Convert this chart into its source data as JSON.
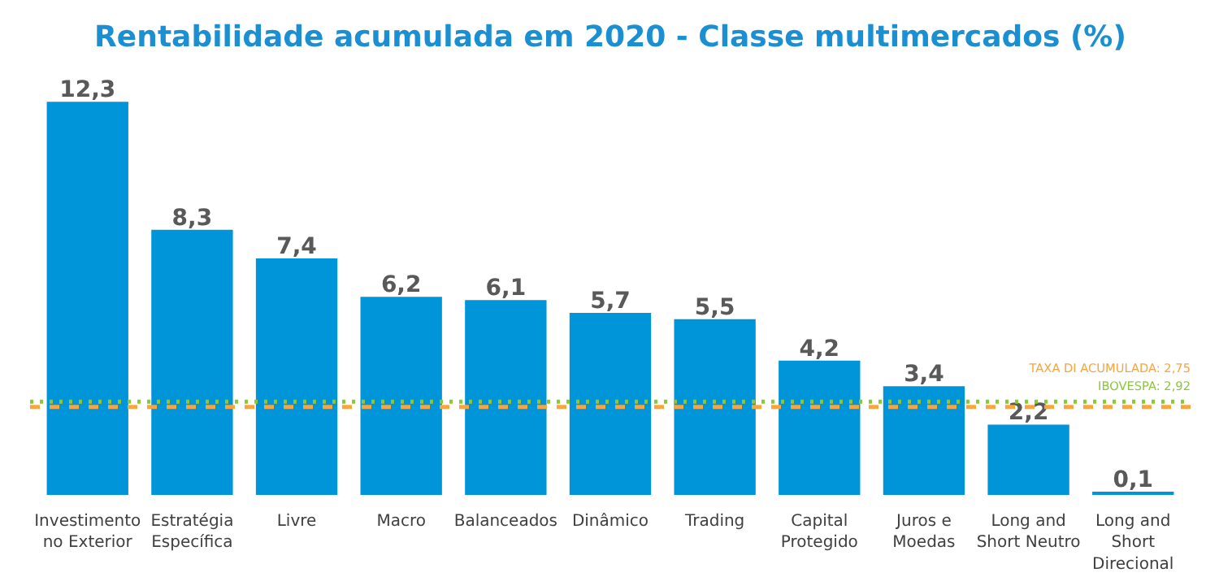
{
  "chart_data": {
    "type": "bar",
    "title": "Rentabilidade acumulada em 2020 - Classe multimercados (%)",
    "categories": [
      "Investimento\nno Exterior",
      "Estratégia\nEspecífica",
      "Livre",
      "Macro",
      "Balanceados",
      "Dinâmico",
      "Trading",
      "Capital\nProtegido",
      "Juros e\nMoedas",
      "Long and\nShort Neutro",
      "Long and\nShort\nDirecional"
    ],
    "values": [
      12.3,
      8.3,
      7.4,
      6.2,
      6.1,
      5.7,
      5.5,
      4.2,
      3.4,
      2.2,
      0.1
    ],
    "value_labels": [
      "12,3",
      "8,3",
      "7,4",
      "6,2",
      "6,1",
      "5,7",
      "5,5",
      "4,2",
      "3,4",
      "2,2",
      "0,1"
    ],
    "color": "#0095d9",
    "ref_lines": [
      {
        "axis": "y",
        "value": 2.92,
        "label": "IBOVESPA: 2,92",
        "color": "#8cc63f",
        "line_style": "dotted"
      },
      {
        "axis": "y",
        "value": 2.75,
        "label": "TAXA DI ACUMULADA: 2,75",
        "color": "#f7a541",
        "line_style": "dashed"
      }
    ],
    "grid": false
  }
}
